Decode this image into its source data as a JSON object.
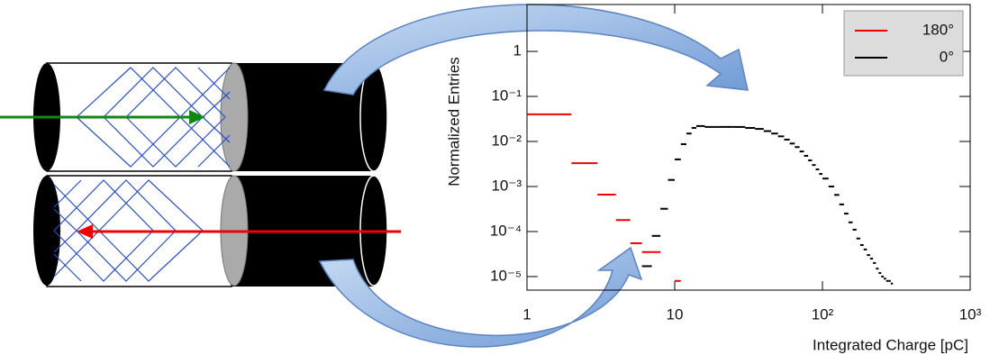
{
  "chart_data": {
    "type": "histogram",
    "xlabel": "Integrated Charge [pC]",
    "ylabel": "Normalized Entries",
    "xscale": "log",
    "yscale": "log",
    "xlim": [
      1,
      1000
    ],
    "ylim": [
      5e-06,
      11
    ],
    "xticks": [
      1,
      10,
      {
        "value": 100,
        "label": "10²"
      },
      {
        "value": 1000,
        "label": "10³"
      }
    ],
    "yticks": [
      {
        "value": 1e-05,
        "label": "10⁻⁵"
      },
      {
        "value": 0.0001,
        "label": "10⁻⁴"
      },
      {
        "value": 0.001,
        "label": "10⁻³"
      },
      {
        "value": 0.01,
        "label": "10⁻²"
      },
      {
        "value": 0.1,
        "label": "10⁻¹"
      },
      1
    ],
    "legend": "upper right",
    "series": [
      {
        "name": "180°",
        "color": "#ee0000",
        "bins": [
          1,
          2,
          3,
          4,
          5,
          6,
          7,
          8,
          9,
          10,
          11
        ],
        "values": [
          0.04,
          0.0033,
          0.00066,
          0.00018,
          5.5e-05,
          3.5e-05,
          3.5e-05,
          null,
          null,
          8e-06
        ]
      },
      {
        "name": "0°",
        "color": "#000000",
        "bins": [
          6,
          7,
          8,
          9,
          10,
          11,
          12,
          13,
          14,
          15,
          16,
          17,
          18,
          19,
          20,
          25,
          30,
          35,
          40,
          45,
          50,
          55,
          60,
          65,
          70,
          75,
          80,
          85,
          90,
          95,
          100,
          110,
          120,
          130,
          140,
          150,
          160,
          170,
          180,
          190,
          200,
          210,
          220,
          230,
          240,
          250,
          260,
          270,
          280,
          290,
          300
        ],
        "values": [
          1.7e-05,
          8e-05,
          0.00032,
          0.0014,
          0.004,
          0.0087,
          0.015,
          0.02,
          0.022,
          0.022,
          0.021,
          0.021,
          0.021,
          0.021,
          0.021,
          0.021,
          0.02,
          0.019,
          0.017,
          0.015,
          0.013,
          0.011,
          0.009,
          0.0075,
          0.006,
          0.0048,
          0.0038,
          0.003,
          0.0024,
          0.0019,
          0.0015,
          0.001,
          0.00065,
          0.0004,
          0.00025,
          0.00016,
          0.00011,
          7e-05,
          5e-05,
          4e-05,
          3e-05,
          2.5e-05,
          2e-05,
          1.5e-05,
          1.2e-05,
          1e-05,
          9e-06,
          8e-06,
          8e-06,
          7e-06
        ]
      }
    ]
  }
}
